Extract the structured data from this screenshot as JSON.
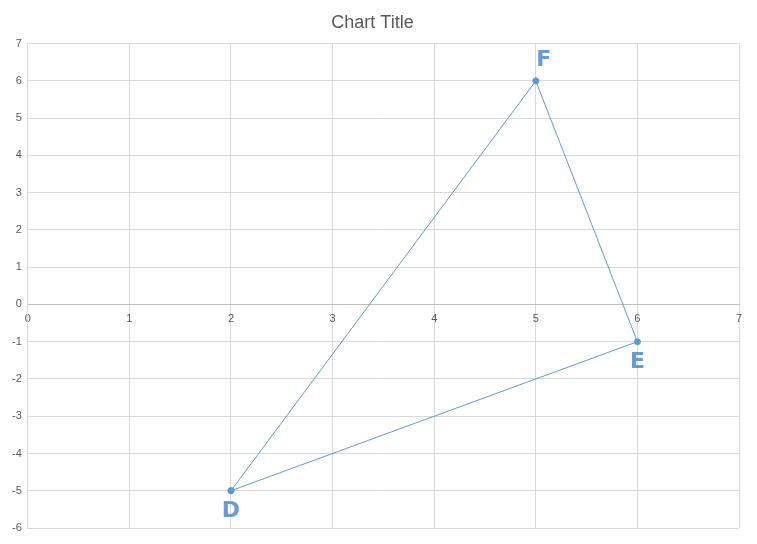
{
  "chart_data": {
    "type": "scatter",
    "title": "Chart Title",
    "x": [
      2,
      5,
      6,
      2
    ],
    "values": [
      -5,
      6,
      -1,
      -5
    ],
    "color": "#5b9bd5",
    "marker": "circle",
    "line_style": "solid",
    "xlim": [
      0,
      7
    ],
    "xticks": [
      0,
      1,
      2,
      3,
      4,
      5,
      6,
      7
    ],
    "ylim": [
      -6,
      7
    ],
    "yticks": [
      -6,
      -5,
      -4,
      -3,
      -2,
      -1,
      0,
      1,
      2,
      3,
      4,
      5,
      6,
      7
    ],
    "grid": true,
    "annotations": [
      {
        "text": "D",
        "x": 2,
        "y": -5
      },
      {
        "text": "F",
        "x": 5,
        "y": 6
      },
      {
        "text": "E",
        "x": 6,
        "y": -1
      }
    ]
  }
}
